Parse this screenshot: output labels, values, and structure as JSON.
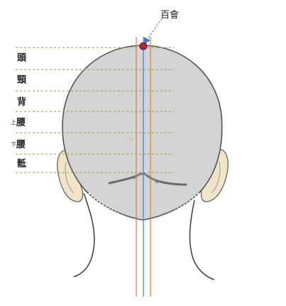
{
  "point": {
    "label": "百會"
  },
  "zones": [
    {
      "prefix": "",
      "label": "頭"
    },
    {
      "prefix": "",
      "label": "頸"
    },
    {
      "prefix": "",
      "label": "背"
    },
    {
      "prefix": "上",
      "label": "腰"
    },
    {
      "prefix": "下",
      "label": "腰"
    },
    {
      "prefix": "",
      "label": "骶"
    }
  ],
  "colors": {
    "head_fill": "#d4d4d4",
    "outline": "#555555",
    "guide_dash": "#7aa64a",
    "orange_line": "#e07a3a",
    "blue_line": "#4a78c0",
    "point_fill": "#cc1d2b",
    "arrow": "#4a78c0",
    "skin": "#f1e4c7"
  }
}
